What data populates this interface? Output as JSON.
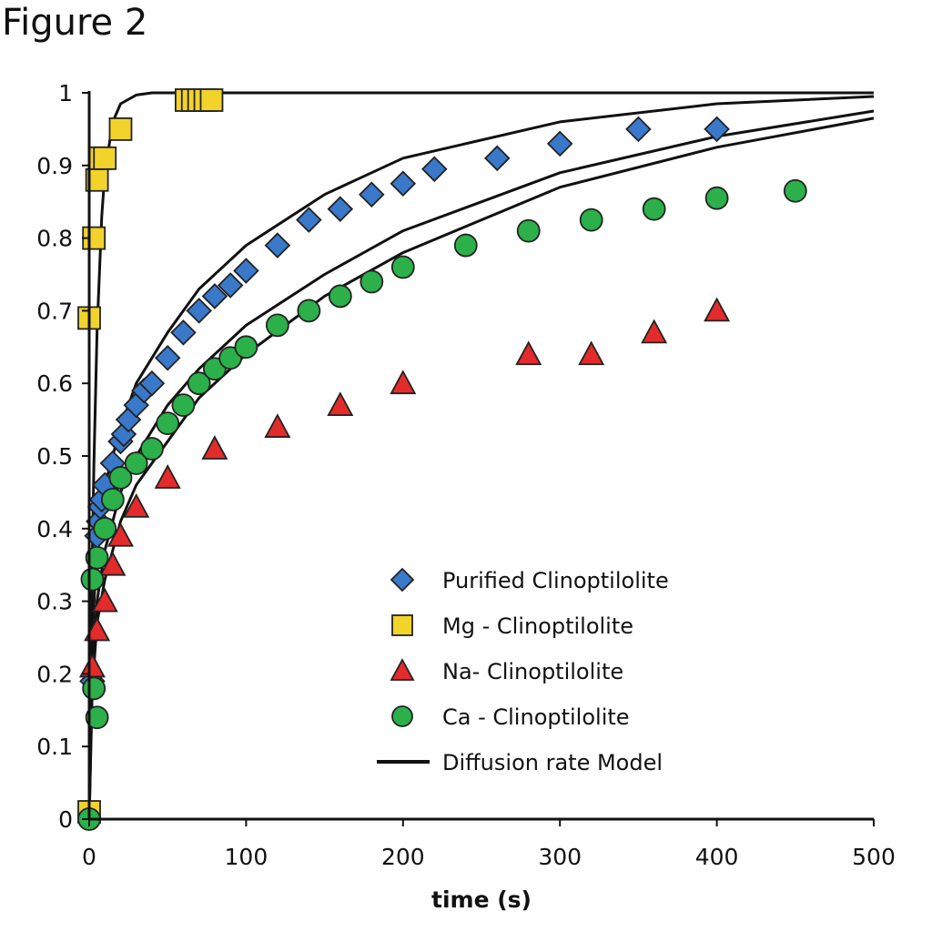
{
  "figure_label": "Figure 2",
  "chart_data": {
    "type": "scatter",
    "title": "",
    "xlabel": "time (s)",
    "ylabel": "",
    "xlim": [
      0,
      500
    ],
    "ylim": [
      0,
      1
    ],
    "xticks": [
      "0",
      "100",
      "200",
      "300",
      "400",
      "500"
    ],
    "yticks": [
      "0",
      "0.1",
      "0.2",
      "0.3",
      "0.4",
      "0.5",
      "0.6",
      "0.7",
      "0.8",
      "0.9",
      "1"
    ],
    "grid": false,
    "legend_position": "bottom-right",
    "series": [
      {
        "name": "Purified Clinoptilolite",
        "marker": "diamond",
        "color": "#3a78c9",
        "x": [
          2,
          5,
          6,
          7,
          8,
          10,
          15,
          20,
          22,
          25,
          30,
          35,
          40,
          50,
          60,
          70,
          80,
          90,
          100,
          120,
          140,
          160,
          180,
          200,
          220,
          260,
          300,
          350,
          400
        ],
        "y": [
          0.19,
          0.39,
          0.41,
          0.43,
          0.44,
          0.46,
          0.49,
          0.52,
          0.53,
          0.55,
          0.57,
          0.59,
          0.6,
          0.635,
          0.67,
          0.7,
          0.72,
          0.735,
          0.755,
          0.79,
          0.825,
          0.84,
          0.86,
          0.875,
          0.895,
          0.91,
          0.93,
          0.95,
          0.95
        ]
      },
      {
        "name": "Mg - Clinoptilolite",
        "marker": "square",
        "color": "#f2d32c",
        "x": [
          0,
          0,
          3,
          5,
          7,
          10,
          20,
          62,
          66,
          70,
          74,
          78
        ],
        "y": [
          0.01,
          0.69,
          0.8,
          0.88,
          0.91,
          0.91,
          0.95,
          0.99,
          0.99,
          0.99,
          0.99,
          0.99
        ]
      },
      {
        "name": "Na- Clinoptilolite",
        "marker": "triangle",
        "color": "#e32b2b",
        "x": [
          2,
          5,
          10,
          15,
          20,
          30,
          50,
          80,
          120,
          160,
          200,
          280,
          320,
          360,
          400
        ],
        "y": [
          0.21,
          0.26,
          0.3,
          0.35,
          0.39,
          0.43,
          0.47,
          0.51,
          0.54,
          0.57,
          0.6,
          0.64,
          0.64,
          0.67,
          0.7
        ]
      },
      {
        "name": "Ca - Clinoptilolite",
        "marker": "circle",
        "color": "#2bb04a",
        "x": [
          0,
          5,
          3,
          2,
          5,
          10,
          15,
          20,
          30,
          40,
          50,
          60,
          70,
          80,
          90,
          100,
          120,
          140,
          160,
          180,
          200,
          240,
          280,
          320,
          360,
          400,
          450
        ],
        "y": [
          0.0,
          0.14,
          0.18,
          0.33,
          0.36,
          0.4,
          0.44,
          0.47,
          0.49,
          0.51,
          0.545,
          0.57,
          0.6,
          0.62,
          0.635,
          0.65,
          0.68,
          0.7,
          0.72,
          0.74,
          0.76,
          0.79,
          0.81,
          0.825,
          0.84,
          0.855,
          0.865
        ]
      }
    ],
    "model": {
      "name": "Diffusion rate Model",
      "color": "#111111",
      "curves": [
        {
          "x": [
            0,
            1,
            2,
            3,
            5,
            8,
            10,
            15,
            20,
            30,
            40,
            60,
            500
          ],
          "y": [
            0,
            0.2,
            0.36,
            0.49,
            0.67,
            0.83,
            0.89,
            0.96,
            0.985,
            0.997,
            1,
            1,
            1
          ]
        },
        {
          "x": [
            0,
            2,
            5,
            10,
            20,
            30,
            50,
            70,
            100,
            150,
            200,
            300,
            400,
            500
          ],
          "y": [
            0,
            0.25,
            0.38,
            0.46,
            0.54,
            0.6,
            0.67,
            0.73,
            0.79,
            0.86,
            0.91,
            0.96,
            0.985,
            0.995
          ]
        },
        {
          "x": [
            0,
            2,
            5,
            10,
            20,
            30,
            50,
            70,
            100,
            150,
            200,
            300,
            400,
            500
          ],
          "y": [
            0,
            0.2,
            0.3,
            0.37,
            0.45,
            0.5,
            0.57,
            0.62,
            0.68,
            0.75,
            0.81,
            0.89,
            0.94,
            0.975
          ]
        },
        {
          "x": [
            0,
            2,
            5,
            10,
            20,
            30,
            50,
            70,
            100,
            150,
            200,
            300,
            400,
            500
          ],
          "y": [
            0,
            0.18,
            0.27,
            0.33,
            0.41,
            0.46,
            0.52,
            0.58,
            0.64,
            0.72,
            0.78,
            0.87,
            0.925,
            0.965
          ]
        }
      ]
    }
  }
}
